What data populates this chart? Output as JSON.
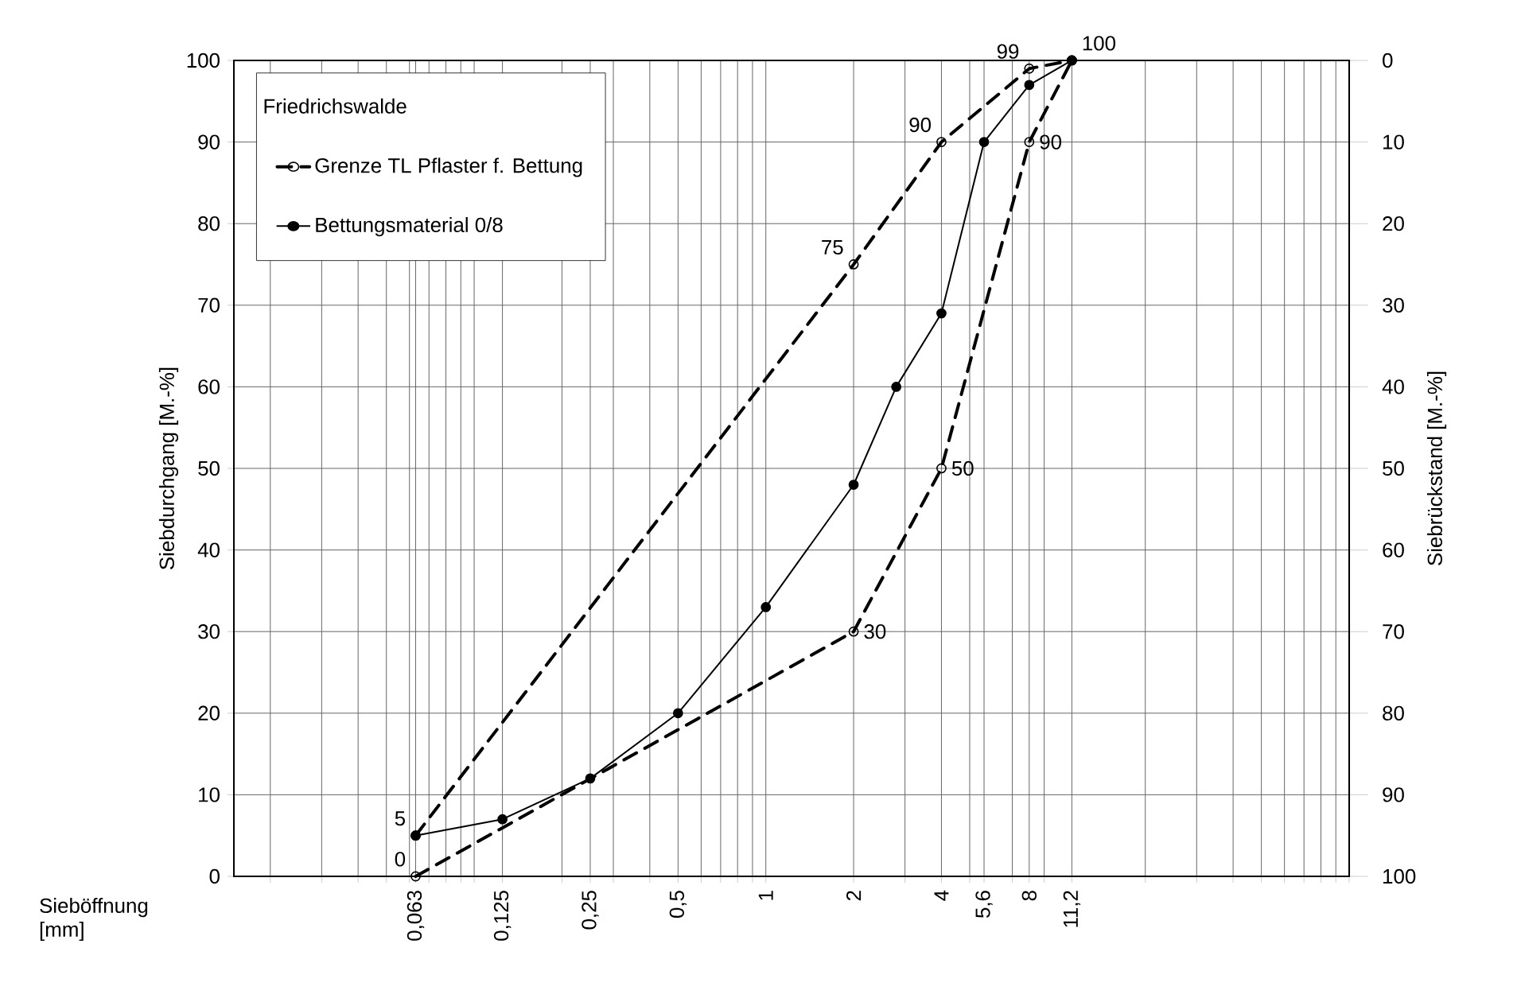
{
  "chart_data": {
    "type": "line",
    "legend_title": "Friedrichswalde",
    "xlabel": "Sieböffnung [mm]",
    "ylabel": "Siebdurchgang [M.-%]",
    "y2label": "Siebrückstand [M.-%]",
    "log": "x",
    "xlim": [
      0.015,
      100
    ],
    "xticks": [
      {
        "value": 0.02,
        "label": null
      },
      {
        "value": 0.03,
        "label": null
      },
      {
        "value": 0.04,
        "label": null
      },
      {
        "value": 0.05,
        "label": null
      },
      {
        "value": 0.06,
        "label": null
      },
      {
        "value": 0.063,
        "label": "0,063"
      },
      {
        "value": 0.07,
        "label": null
      },
      {
        "value": 0.08,
        "label": null
      },
      {
        "value": 0.09,
        "label": null
      },
      {
        "value": 0.1,
        "label": null
      },
      {
        "value": 0.125,
        "label": "0,125"
      },
      {
        "value": 0.2,
        "label": null
      },
      {
        "value": 0.25,
        "label": "0,25"
      },
      {
        "value": 0.3,
        "label": null
      },
      {
        "value": 0.4,
        "label": null
      },
      {
        "value": 0.5,
        "label": "0,5"
      },
      {
        "value": 0.6,
        "label": null
      },
      {
        "value": 0.7,
        "label": null
      },
      {
        "value": 0.8,
        "label": null
      },
      {
        "value": 0.9,
        "label": null
      },
      {
        "value": 1,
        "label": "1"
      },
      {
        "value": 2,
        "label": "2"
      },
      {
        "value": 3,
        "label": null
      },
      {
        "value": 4,
        "label": "4"
      },
      {
        "value": 5,
        "label": null
      },
      {
        "value": 5.6,
        "label": "5,6"
      },
      {
        "value": 7,
        "label": null
      },
      {
        "value": 8,
        "label": "8"
      },
      {
        "value": 9,
        "label": null
      },
      {
        "value": 11.2,
        "label": "11,2"
      },
      {
        "value": 20,
        "label": null
      },
      {
        "value": 30,
        "label": null
      },
      {
        "value": 40,
        "label": null
      },
      {
        "value": 50,
        "label": null
      },
      {
        "value": 60,
        "label": null
      },
      {
        "value": 70,
        "label": null
      },
      {
        "value": 80,
        "label": null
      },
      {
        "value": 90,
        "label": null
      },
      {
        "value": 100,
        "label": null
      }
    ],
    "ylim": [
      0,
      100
    ],
    "yticks": [
      0,
      10,
      20,
      30,
      40,
      50,
      60,
      70,
      80,
      90,
      100
    ],
    "y2lim": [
      100,
      0
    ],
    "y2ticks": [
      0,
      10,
      20,
      30,
      40,
      50,
      60,
      70,
      80,
      90,
      100
    ],
    "grid": true,
    "legend": "top left",
    "series": [
      {
        "name": "Grenze TL Pflaster f. Bettung",
        "color": "#000000",
        "line_style": "dashed",
        "marker": "circle",
        "x": [
          0.063,
          2,
          4,
          8,
          11.2
        ],
        "values": [
          5,
          75,
          90,
          99,
          100
        ],
        "value_labels": [
          "5",
          "75",
          "90",
          "99",
          "100"
        ]
      },
      {
        "color": "#000000",
        "line_style": "dashed",
        "marker": "circle",
        "x": [
          0.063,
          2,
          4,
          8,
          11.2
        ],
        "values": [
          0,
          30,
          50,
          90,
          100
        ],
        "value_labels": [
          "0",
          "30",
          "50",
          "90",
          null
        ]
      },
      {
        "name": "Bettungsmaterial 0/8",
        "color": "#000000",
        "line_style": "solid",
        "marker": "circle",
        "x": [
          0.063,
          0.125,
          0.25,
          0.5,
          1,
          2,
          2.8,
          4,
          5.6,
          8,
          11.2
        ],
        "values": [
          5,
          7,
          12,
          20,
          33,
          48,
          60,
          69,
          90,
          97,
          100
        ]
      }
    ]
  }
}
